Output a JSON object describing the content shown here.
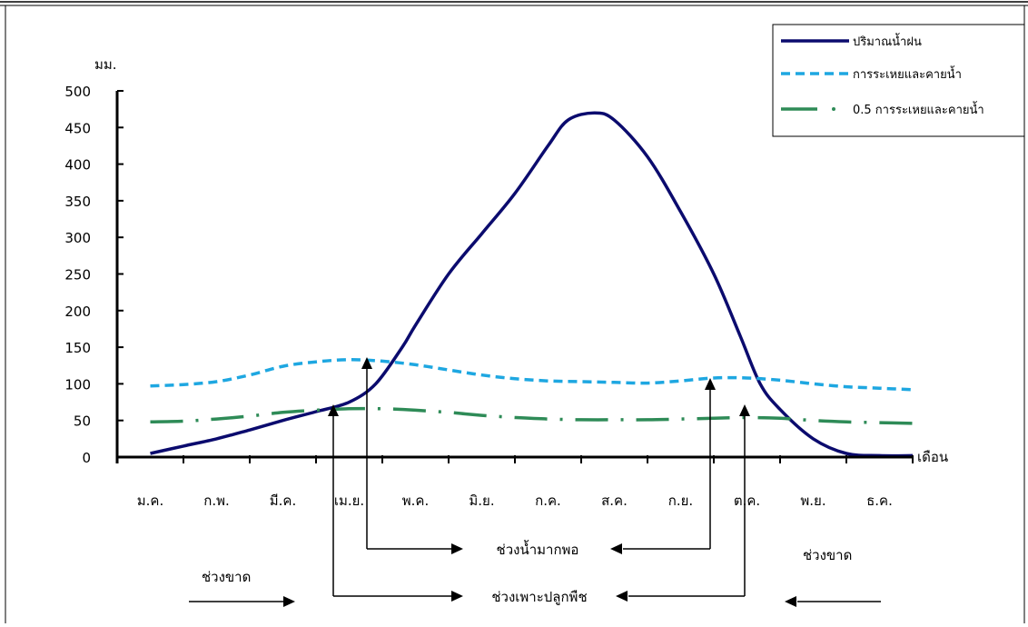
{
  "chart_data": {
    "type": "line",
    "ylabel": "มม.",
    "xlabel": "เดือน",
    "ylim": [
      0,
      500
    ],
    "yticks": [
      0,
      50,
      100,
      150,
      200,
      250,
      300,
      350,
      400,
      450,
      500
    ],
    "categories": [
      "ม.ค.",
      "ก.พ.",
      "มี.ค.",
      "เม.ย.",
      "พ.ค.",
      "มิ.ย.",
      "ก.ค.",
      "ส.ค.",
      "ก.ย.",
      "ต.ค.",
      "พ.ย.",
      "ธ.ค."
    ],
    "series": [
      {
        "name": "ปริมาณน้ำฝน",
        "color": "#0b0b6e",
        "style": "solid",
        "x": [
          0.0,
          0.5,
          1.0,
          1.5,
          2.0,
          2.5,
          3.0,
          3.4,
          3.8,
          4.0,
          4.5,
          5.0,
          5.5,
          6.0,
          6.3,
          6.7,
          7.0,
          7.5,
          8.0,
          8.5,
          8.9,
          9.2,
          9.5,
          10.0,
          10.5,
          11.0,
          11.5
        ],
        "y": [
          5,
          15,
          25,
          37,
          50,
          62,
          75,
          100,
          150,
          180,
          250,
          305,
          360,
          425,
          460,
          470,
          460,
          410,
          335,
          250,
          165,
          100,
          65,
          25,
          5,
          2,
          2
        ]
      },
      {
        "name": "การระเหยและคายน้ำ",
        "color": "#1ea7e1",
        "style": "dashed",
        "x": [
          0.0,
          0.5,
          1.0,
          1.5,
          2.0,
          2.5,
          3.0,
          3.5,
          4.0,
          4.5,
          5.0,
          5.5,
          6.0,
          6.5,
          7.0,
          7.5,
          8.0,
          8.5,
          9.0,
          9.5,
          10.0,
          10.5,
          11.0,
          11.5
        ],
        "y": [
          97,
          99,
          103,
          112,
          124,
          130,
          133,
          131,
          126,
          119,
          112,
          107,
          104,
          103,
          102,
          101,
          104,
          108,
          108,
          105,
          100,
          96,
          94,
          92
        ]
      },
      {
        "name": "0.5 การระเหยและคายน้ำ",
        "color": "#2e8b57",
        "style": "dashdot",
        "x": [
          0.0,
          0.5,
          1.0,
          1.5,
          2.0,
          2.5,
          3.0,
          3.5,
          4.0,
          4.5,
          5.0,
          5.5,
          6.0,
          6.5,
          7.0,
          7.5,
          8.0,
          8.5,
          9.0,
          9.5,
          10.0,
          10.5,
          11.0,
          11.5
        ],
        "y": [
          48,
          49,
          52,
          56,
          61,
          64,
          66,
          66,
          64,
          61,
          57,
          54,
          52,
          51,
          51,
          51,
          52,
          53,
          54,
          53,
          50,
          48,
          47,
          46
        ]
      }
    ],
    "annotations": {
      "left_gap": "ช่วงขาด",
      "right_gap": "ช่วงขาด",
      "sufficient": "ช่วงน้ำมากพอ",
      "growing": "ช่วงเพาะปลูกพืช"
    },
    "legend_position": "top-right"
  }
}
